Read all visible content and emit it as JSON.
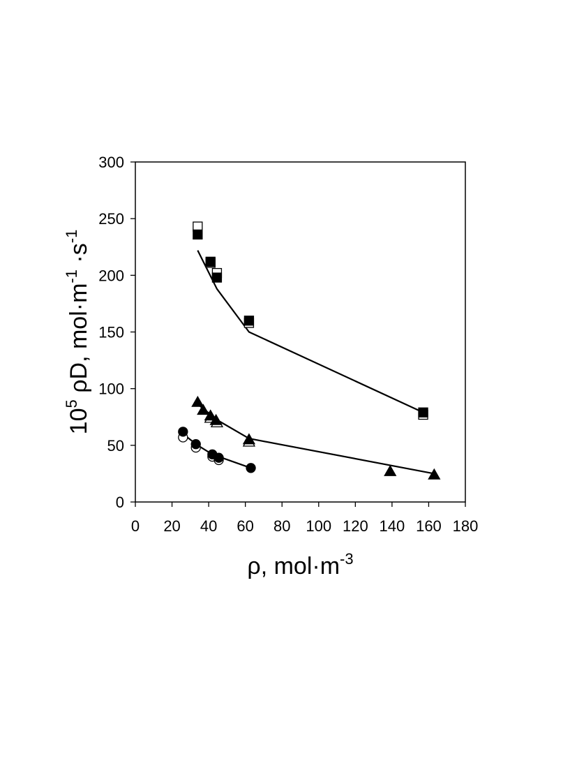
{
  "chart_data": {
    "type": "scatter",
    "xlabel": {
      "main": "ρ, mol·m",
      "sup": "-3"
    },
    "ylabel": {
      "pre": "10",
      "pre_sup": "5",
      "mid": " ρD, mol·m",
      "sup1": "-1",
      "mid2": " ·s",
      "sup2": "-1"
    },
    "xlim": [
      0,
      180
    ],
    "ylim": [
      0,
      300
    ],
    "x_ticks": [
      "0",
      "20",
      "40",
      "60",
      "80",
      "100",
      "120",
      "140",
      "160",
      "180"
    ],
    "y_ticks": [
      "0",
      "50",
      "100",
      "150",
      "200",
      "250",
      "300"
    ],
    "grid": false,
    "legend": "none",
    "colors": {
      "axis": "#000000",
      "marker": "#000000",
      "open_fill": "#ffffff",
      "line": "#000000"
    },
    "series": [
      {
        "marker": "square",
        "filled": true,
        "points": [
          [
            34,
            236
          ],
          [
            41,
            212
          ],
          [
            44.5,
            198
          ],
          [
            62,
            160
          ],
          [
            157,
            79
          ]
        ]
      },
      {
        "marker": "square",
        "filled": false,
        "points": [
          [
            34,
            243
          ],
          [
            41,
            211
          ],
          [
            44.5,
            202
          ],
          [
            62,
            158
          ],
          [
            157,
            77
          ]
        ]
      },
      {
        "marker": "triangle",
        "filled": true,
        "points": [
          [
            34,
            88
          ],
          [
            37,
            81
          ],
          [
            41,
            76
          ],
          [
            44,
            72
          ],
          [
            62,
            55
          ],
          [
            139,
            27
          ],
          [
            163,
            24
          ]
        ]
      },
      {
        "marker": "triangle",
        "filled": false,
        "points": [
          [
            41,
            74
          ],
          [
            44.5,
            70
          ],
          [
            62,
            53
          ]
        ]
      },
      {
        "marker": "circle",
        "filled": true,
        "points": [
          [
            26,
            62
          ],
          [
            33,
            51
          ],
          [
            42,
            42
          ],
          [
            45.5,
            39
          ],
          [
            63,
            30
          ]
        ]
      },
      {
        "marker": "circle",
        "filled": false,
        "points": [
          [
            26,
            57
          ],
          [
            33,
            48
          ],
          [
            42,
            40
          ],
          [
            45.5,
            37
          ]
        ]
      }
    ],
    "fit_lines": [
      {
        "points": [
          [
            34,
            222
          ],
          [
            44.5,
            188
          ],
          [
            62,
            150
          ],
          [
            157,
            79
          ]
        ]
      },
      {
        "points": [
          [
            35,
            85
          ],
          [
            45,
            72
          ],
          [
            62,
            56
          ],
          [
            163,
            25
          ]
        ]
      },
      {
        "points": [
          [
            26,
            60
          ],
          [
            34,
            50
          ],
          [
            42,
            42
          ],
          [
            63,
            30
          ]
        ]
      }
    ]
  }
}
